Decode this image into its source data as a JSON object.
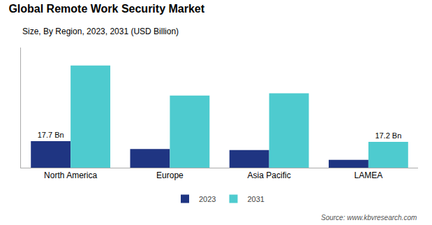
{
  "chart_data": {
    "type": "bar",
    "title": "Global Remote Work Security Market",
    "subtitle": "Size, By Region, 2023, 2031 (USD Billion)",
    "categories": [
      "North America",
      "Europe",
      "Asia Pacific",
      "LAMEA"
    ],
    "series": [
      {
        "name": "2023",
        "color": "#1f3582",
        "values": [
          17.7,
          12.5,
          11.8,
          5.2
        ]
      },
      {
        "name": "2031",
        "color": "#4ecbcf",
        "values": [
          68.0,
          48.0,
          49.5,
          17.2
        ]
      }
    ],
    "annotations": [
      {
        "text": "17.7 Bn",
        "category": "North America",
        "series": "2023"
      },
      {
        "text": "17.2 Bn",
        "category": "LAMEA",
        "series": "2031"
      }
    ],
    "source": "Source: www.kbvresearch.com",
    "ylim": [
      0,
      80
    ],
    "grid": false,
    "legend": "bottom",
    "tick_labels": "x"
  }
}
